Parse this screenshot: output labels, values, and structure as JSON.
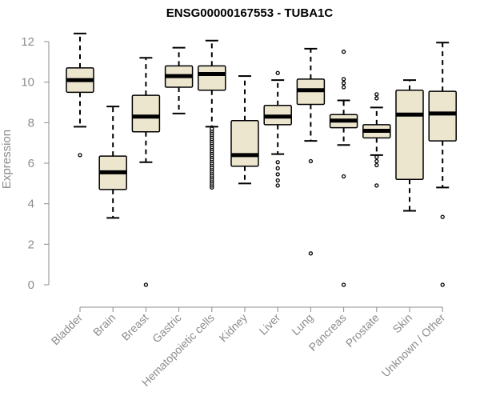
{
  "chart_data": {
    "type": "box",
    "title": "ENSG00000167553 - TUBA1C",
    "xlabel": "",
    "ylabel": "Expression",
    "ylim": [
      0,
      12
    ],
    "yticks": [
      0,
      2,
      4,
      6,
      8,
      10,
      12
    ],
    "colors": {
      "box_fill": "#ede6cf",
      "box_stroke": "#000000",
      "axis": "#8c8c8c"
    },
    "categories": [
      "Bladder",
      "Brain",
      "Breast",
      "Gastric",
      "Hematopoietic cells",
      "Kidney",
      "Liver",
      "Lung",
      "Pancreas",
      "Prostate",
      "Skin",
      "Unknown / Other"
    ],
    "boxes": [
      {
        "category": "Bladder",
        "whisker_low": 7.8,
        "q1": 9.5,
        "median": 10.1,
        "q3": 10.7,
        "whisker_high": 12.4,
        "outliers": [
          6.4
        ]
      },
      {
        "category": "Brain",
        "whisker_low": 3.3,
        "q1": 4.7,
        "median": 5.55,
        "q3": 6.35,
        "whisker_high": 8.8,
        "outliers": []
      },
      {
        "category": "Breast",
        "whisker_low": 6.05,
        "q1": 7.55,
        "median": 8.3,
        "q3": 9.35,
        "whisker_high": 11.2,
        "outliers": [
          0.0
        ]
      },
      {
        "category": "Gastric",
        "whisker_low": 8.45,
        "q1": 9.75,
        "median": 10.3,
        "q3": 10.8,
        "whisker_high": 11.7,
        "outliers": []
      },
      {
        "category": "Hematopoietic cells",
        "whisker_low": 7.8,
        "q1": 9.6,
        "median": 10.4,
        "q3": 10.8,
        "whisker_high": 12.05,
        "outliers": [
          4.8,
          4.9,
          5.0,
          5.1,
          5.2,
          5.3,
          5.4,
          5.5,
          5.6,
          5.7,
          5.8,
          5.9,
          6.0,
          6.1,
          6.2,
          6.3,
          6.4,
          6.5,
          6.6,
          6.7,
          6.8,
          6.9,
          7.0,
          7.1,
          7.2,
          7.3,
          7.4,
          7.5,
          7.6,
          7.7
        ]
      },
      {
        "category": "Kidney",
        "whisker_low": 5.0,
        "q1": 5.85,
        "median": 6.4,
        "q3": 8.1,
        "whisker_high": 10.3,
        "outliers": []
      },
      {
        "category": "Liver",
        "whisker_low": 6.45,
        "q1": 7.9,
        "median": 8.3,
        "q3": 8.85,
        "whisker_high": 10.1,
        "outliers": [
          10.45,
          6.05,
          5.75,
          5.45,
          5.15,
          4.9
        ]
      },
      {
        "category": "Lung",
        "whisker_low": 7.1,
        "q1": 8.9,
        "median": 9.6,
        "q3": 10.15,
        "whisker_high": 11.65,
        "outliers": [
          6.1,
          1.55
        ]
      },
      {
        "category": "Pancreas",
        "whisker_low": 6.9,
        "q1": 7.75,
        "median": 8.1,
        "q3": 8.4,
        "whisker_high": 9.1,
        "outliers": [
          11.5,
          10.15,
          9.95,
          9.75,
          5.35,
          0.0
        ]
      },
      {
        "category": "Prostate",
        "whisker_low": 6.4,
        "q1": 7.25,
        "median": 7.6,
        "q3": 7.9,
        "whisker_high": 8.75,
        "outliers": [
          9.4,
          9.2,
          6.3,
          6.1,
          5.9,
          4.9
        ]
      },
      {
        "category": "Skin",
        "whisker_low": 3.65,
        "q1": 5.2,
        "median": 8.4,
        "q3": 9.6,
        "whisker_high": 10.1,
        "outliers": []
      },
      {
        "category": "Unknown / Other",
        "whisker_low": 4.8,
        "q1": 7.1,
        "median": 8.45,
        "q3": 9.55,
        "whisker_high": 11.95,
        "outliers": [
          3.35,
          0.0
        ]
      }
    ]
  }
}
